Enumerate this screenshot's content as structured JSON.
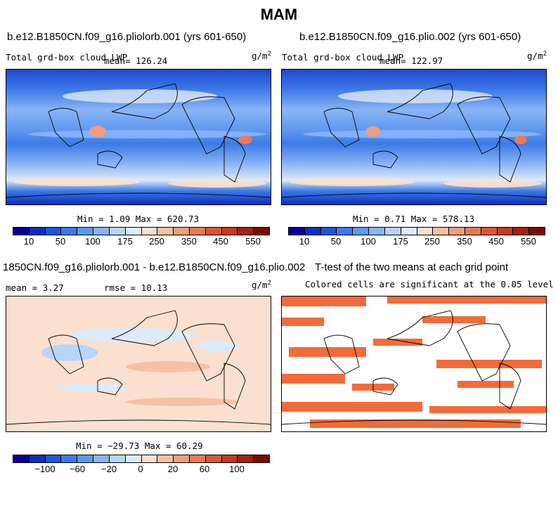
{
  "figure": {
    "title": "MAM"
  },
  "chart_data": [
    {
      "type": "heatmap",
      "title": "b.e12.B1850CN.f09_g16.pliolorb.001 (yrs 601-650)",
      "variable": "Total grd-box cloud LWP",
      "mean_label": "mean= 126.24",
      "units": "g/m",
      "units_exp": "2",
      "stats": "Min =    1.09 Max = 620.73",
      "colorbar": {
        "ticks": [
          "10",
          "50",
          "100",
          "175",
          "250",
          "350",
          "450",
          "550"
        ],
        "colors": [
          "#08009c",
          "#0d2fbf",
          "#1a57d9",
          "#3d7ae6",
          "#5e98f0",
          "#8ab5f5",
          "#b8d4f7",
          "#ddeaf7",
          "#fbe0cf",
          "#f7c0a3",
          "#f39d7c",
          "#ea7a57",
          "#dd5535",
          "#c73a1c",
          "#a71f0f",
          "#7d0a05"
        ]
      }
    },
    {
      "type": "heatmap",
      "title": "b.e12.B1850CN.f09_g16.plio.002 (yrs 601-650)",
      "variable": "Total grd-box cloud LWP",
      "mean_label": "mean= 122.97",
      "units": "g/m",
      "units_exp": "2",
      "stats": "Min =    0.71 Max = 578.13",
      "colorbar": {
        "ticks": [
          "10",
          "50",
          "100",
          "175",
          "250",
          "350",
          "450",
          "550"
        ],
        "colors": [
          "#08009c",
          "#0d2fbf",
          "#1a57d9",
          "#3d7ae6",
          "#5e98f0",
          "#8ab5f5",
          "#b8d4f7",
          "#ddeaf7",
          "#fbe0cf",
          "#f7c0a3",
          "#f39d7c",
          "#ea7a57",
          "#dd5535",
          "#c73a1c",
          "#a71f0f",
          "#7d0a05"
        ]
      }
    },
    {
      "type": "heatmap",
      "title": "1850CN.f09_g16.pliolorb.001 - b.e12.B1850CN.f09_g16.plio.002",
      "mean_label": "mean =    3.27",
      "rmse_label": "rmse =   10.13",
      "units": "g/m",
      "units_exp": "2",
      "stats": "Min = −29.73 Max =  60.29",
      "colorbar": {
        "ticks": [
          "−100",
          "−60",
          "−20",
          "0",
          "20",
          "60",
          "100"
        ],
        "colors": [
          "#08009c",
          "#0d2fbf",
          "#1a57d9",
          "#3d7ae6",
          "#5e98f0",
          "#8ab5f5",
          "#b8d4f7",
          "#ddeaf7",
          "#fbe0cf",
          "#f7c0a3",
          "#f39d7c",
          "#ea7a57",
          "#dd5535",
          "#c73a1c",
          "#a71f0f",
          "#7d0a05"
        ]
      }
    },
    {
      "type": "heatmap",
      "title": "T-test of the two means at each grid point",
      "subtitle": "Colored cells are significant at the 0.05 level",
      "significance_color": "#f26b3a",
      "significance_level": 0.05
    }
  ]
}
